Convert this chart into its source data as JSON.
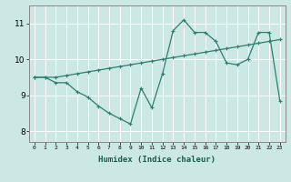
{
  "xlabel": "Humidex (Indice chaleur)",
  "bg_color": "#cce8e4",
  "line_color": "#2e7d6e",
  "grid_color": "#ffffff",
  "x_values": [
    0,
    1,
    2,
    3,
    4,
    5,
    6,
    7,
    8,
    9,
    10,
    11,
    12,
    13,
    14,
    15,
    16,
    17,
    18,
    19,
    20,
    21,
    22,
    23
  ],
  "series1": [
    9.5,
    9.5,
    9.35,
    9.35,
    9.1,
    8.95,
    8.7,
    8.5,
    8.35,
    8.2,
    9.2,
    8.65,
    9.6,
    10.8,
    11.1,
    10.75,
    10.75,
    10.5,
    9.9,
    9.85,
    10.0,
    10.75,
    10.75,
    8.85
  ],
  "series2": [
    9.5,
    9.5,
    9.5,
    9.55,
    9.6,
    9.65,
    9.7,
    9.75,
    9.8,
    9.85,
    9.9,
    9.95,
    10.0,
    10.05,
    10.1,
    10.15,
    10.2,
    10.25,
    10.3,
    10.35,
    10.4,
    10.45,
    10.5,
    10.55
  ],
  "ylim": [
    7.7,
    11.5
  ],
  "yticks": [
    8,
    9,
    10,
    11
  ],
  "xtick_labels": [
    "0",
    "1",
    "2",
    "3",
    "4",
    "5",
    "6",
    "7",
    "8",
    "9",
    "10",
    "11",
    "12",
    "13",
    "14",
    "15",
    "16",
    "17",
    "18",
    "19",
    "20",
    "21",
    "22",
    "23"
  ],
  "marker": "+",
  "markersize": 3,
  "linewidth": 0.9
}
